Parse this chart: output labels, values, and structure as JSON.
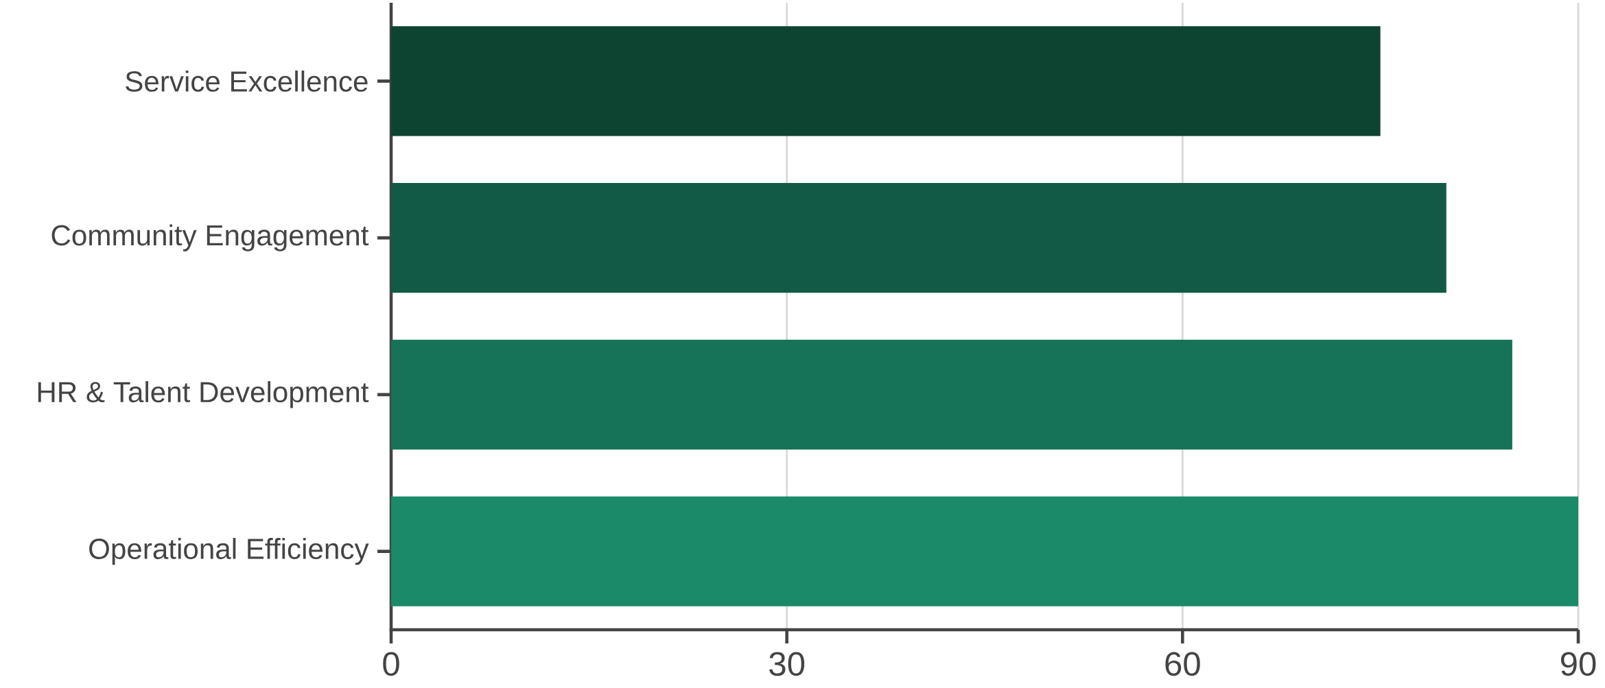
{
  "chart_data": {
    "type": "bar",
    "orientation": "horizontal",
    "categories": [
      "Service Excellence",
      "Community Engagement",
      "HR & Talent Development",
      "Operational Efficiency"
    ],
    "values": [
      75,
      80,
      85,
      90
    ],
    "colors": [
      "#0d4331",
      "#125a45",
      "#177357",
      "#1b8a68"
    ],
    "xlim": [
      0,
      90
    ],
    "xticks": [
      0,
      30,
      60,
      90
    ],
    "grid": "x"
  }
}
